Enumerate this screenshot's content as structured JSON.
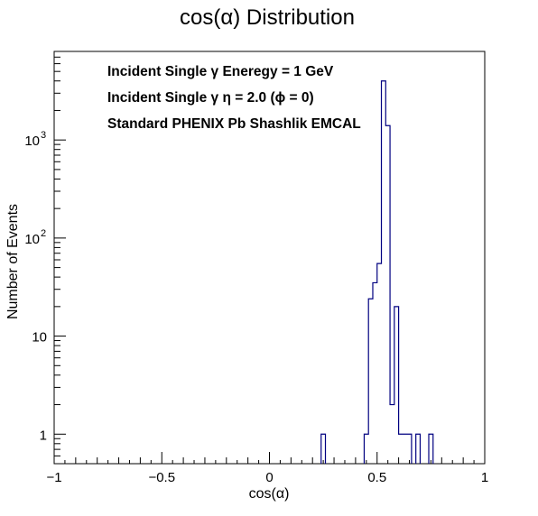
{
  "chart_data": {
    "type": "histogram",
    "title": "cos(α) Distribution",
    "xlabel": "cos(α)",
    "ylabel": "Number of Events",
    "xlim": [
      -1,
      1
    ],
    "ylim": [
      0.5,
      8000
    ],
    "log_y": true,
    "grid": false,
    "legend": "none",
    "line_color": "#000080",
    "x_ticks": [
      {
        "value": -1,
        "label": "−1"
      },
      {
        "value": -0.5,
        "label": "−0.5"
      },
      {
        "value": 0,
        "label": "0"
      },
      {
        "value": 0.5,
        "label": "0.5"
      },
      {
        "value": 1,
        "label": "1"
      }
    ],
    "y_ticks": [
      {
        "value": 1,
        "label": "1"
      },
      {
        "value": 10,
        "label": "10"
      },
      {
        "value": 100,
        "label": "10",
        "exponent": "2"
      },
      {
        "value": 1000,
        "label": "10",
        "exponent": "3"
      }
    ],
    "bin_width": 0.02,
    "bins": [
      {
        "x_low": 0.24,
        "count": 1
      },
      {
        "x_low": 0.44,
        "count": 1
      },
      {
        "x_low": 0.46,
        "count": 24
      },
      {
        "x_low": 0.48,
        "count": 35
      },
      {
        "x_low": 0.5,
        "count": 55
      },
      {
        "x_low": 0.52,
        "count": 4000
      },
      {
        "x_low": 0.54,
        "count": 1400
      },
      {
        "x_low": 0.56,
        "count": 2
      },
      {
        "x_low": 0.58,
        "count": 20
      },
      {
        "x_low": 0.6,
        "count": 1
      },
      {
        "x_low": 0.62,
        "count": 1
      },
      {
        "x_low": 0.64,
        "count": 1
      },
      {
        "x_low": 0.68,
        "count": 1
      },
      {
        "x_low": 0.74,
        "count": 1
      }
    ],
    "annotations": [
      "Incident Single   γ Eneregy = 1 GeV",
      "Incident Single   γ  η = 2.0 (ϕ = 0)",
      "Standard PHENIX Pb Shashlik EMCAL"
    ]
  }
}
